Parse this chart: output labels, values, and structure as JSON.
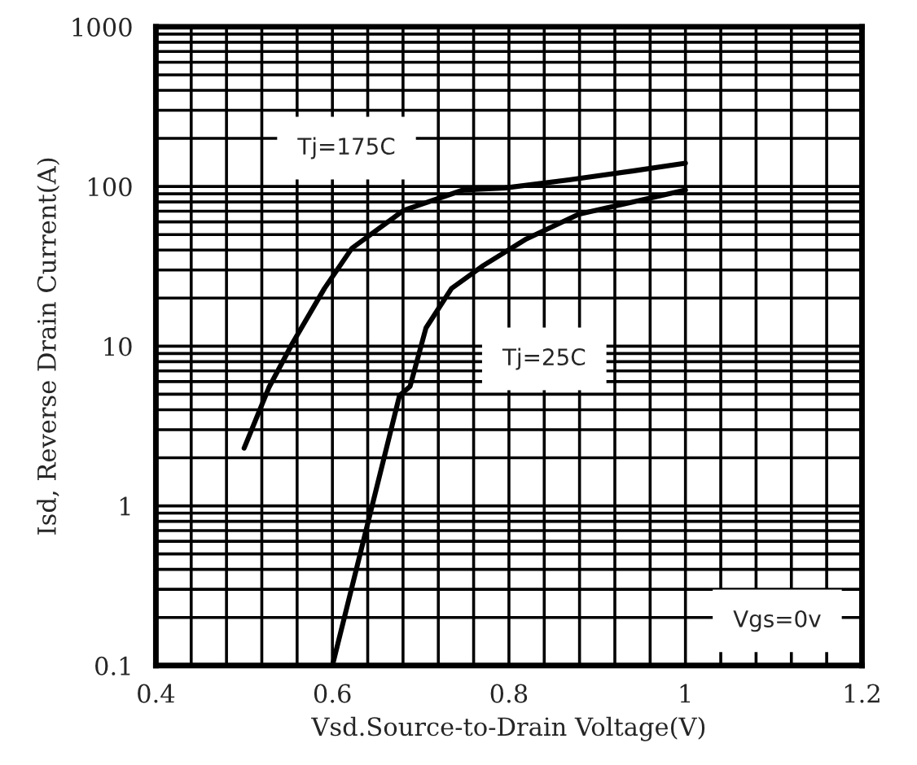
{
  "chart_data": {
    "type": "line",
    "xlabel": "Vsd.Source-to-Drain Voltage(V)",
    "ylabel": "Isd, Reverse Drain Current(A)",
    "series": [
      {
        "x": [
          0.5,
          0.528,
          0.555,
          0.591,
          0.622,
          0.681,
          0.748,
          0.796,
          0.868,
          0.94,
          1.0
        ],
        "values": [
          2.3,
          5.5,
          10.5,
          23,
          41,
          71,
          95,
          98,
          110,
          125,
          140
        ],
        "color": "#000000"
      },
      {
        "x": [
          0.6,
          0.645,
          0.676,
          0.688,
          0.706,
          0.735,
          0.771,
          0.82,
          0.879,
          1.0
        ],
        "values": [
          0.1,
          1.0,
          4.9,
          5.6,
          13,
          23,
          32,
          47,
          67,
          95
        ],
        "color": "#000000"
      }
    ],
    "annotations": [
      "Tj=175C",
      "Tj=25C",
      "Vgs=0v"
    ],
    "log": "y",
    "xlim": [
      0.4,
      1.2
    ],
    "xticks": [
      0.4,
      0.6,
      0.8,
      1,
      1.2
    ],
    "ylim": [
      0.1,
      1000
    ],
    "yticks": [
      0.1,
      1,
      10,
      100,
      1000
    ],
    "grid": true,
    "line_style": "solid",
    "marker": "none"
  }
}
